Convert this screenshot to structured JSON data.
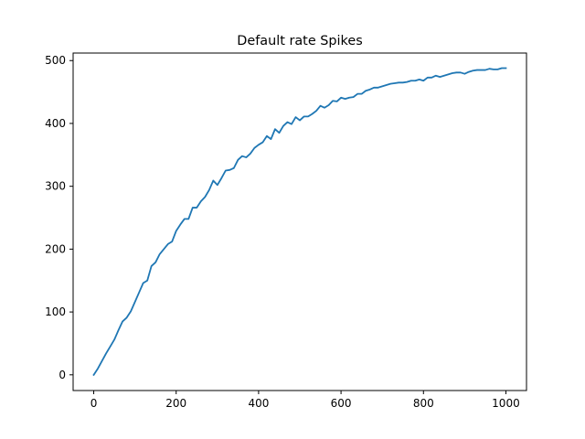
{
  "chart_data": {
    "type": "line",
    "title": "Default rate Spikes",
    "xlabel": "",
    "ylabel": "",
    "xlim": [
      -50,
      1050
    ],
    "ylim": [
      -25,
      512
    ],
    "xticks": [
      0,
      200,
      400,
      600,
      800,
      1000
    ],
    "yticks": [
      0,
      100,
      200,
      300,
      400,
      500
    ],
    "grid": false,
    "series": [
      {
        "color": "#1f77b4",
        "x": [
          0,
          10,
          20,
          30,
          40,
          50,
          60,
          70,
          80,
          90,
          100,
          110,
          120,
          130,
          140,
          150,
          160,
          170,
          180,
          190,
          200,
          210,
          220,
          230,
          240,
          250,
          260,
          270,
          280,
          290,
          300,
          310,
          320,
          330,
          340,
          350,
          360,
          370,
          380,
          390,
          400,
          410,
          420,
          430,
          440,
          450,
          460,
          470,
          480,
          490,
          500,
          510,
          520,
          530,
          540,
          550,
          560,
          570,
          580,
          590,
          600,
          610,
          620,
          630,
          640,
          650,
          660,
          670,
          680,
          690,
          700,
          710,
          720,
          730,
          740,
          750,
          760,
          770,
          780,
          790,
          800,
          810,
          820,
          830,
          840,
          850,
          860,
          870,
          880,
          890,
          900,
          910,
          920,
          930,
          940,
          950,
          960,
          970,
          980,
          990,
          1000
        ],
        "y": [
          0,
          10,
          22,
          34,
          45,
          56,
          71,
          85,
          91,
          101,
          116,
          131,
          146,
          150,
          173,
          179,
          192,
          200,
          208,
          212,
          229,
          239,
          248,
          248,
          266,
          266,
          276,
          283,
          294,
          309,
          302,
          313,
          325,
          326,
          329,
          342,
          348,
          346,
          352,
          361,
          366,
          370,
          380,
          375,
          391,
          385,
          396,
          402,
          399,
          410,
          405,
          411,
          411,
          415,
          420,
          428,
          425,
          429,
          436,
          435,
          441,
          439,
          441,
          442,
          447,
          447,
          452,
          454,
          457,
          457,
          459,
          461,
          463,
          464,
          465,
          465,
          466,
          468,
          468,
          470,
          468,
          473,
          473,
          476,
          474,
          476,
          478,
          480,
          481,
          481,
          479,
          482,
          484,
          485,
          485,
          485,
          487,
          486,
          486,
          488,
          488
        ]
      }
    ]
  }
}
